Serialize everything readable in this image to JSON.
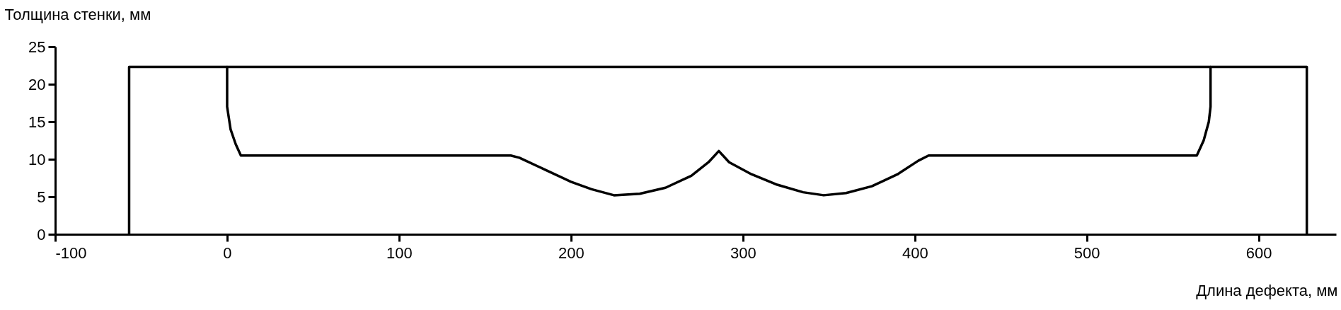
{
  "chart_data": {
    "type": "line",
    "xlabel": "Длина дефекта, мм",
    "ylabel": "Толщина стенки, мм",
    "xlim": [
      -100,
      645
    ],
    "ylim": [
      0,
      25
    ],
    "xticks": [
      -100,
      0,
      100,
      200,
      300,
      400,
      500,
      600
    ],
    "yticks": [
      0,
      5,
      10,
      15,
      20,
      25
    ],
    "grid": false,
    "legend": false,
    "series": [
      {
        "color": "#000000",
        "x": [
          -57,
          -57,
          628,
          628
        ],
        "values": [
          0,
          22.3,
          22.3,
          0
        ]
      },
      {
        "color": "#000000",
        "x": [
          0,
          0,
          2,
          5,
          8,
          165,
          170,
          185,
          200,
          212,
          225,
          240,
          255,
          270,
          280,
          286,
          292,
          305,
          320,
          335,
          347,
          360,
          375,
          390,
          402,
          408,
          564,
          568,
          571,
          572,
          572
        ],
        "values": [
          22.3,
          17,
          14,
          12,
          10.5,
          10.5,
          10.2,
          8.6,
          7.0,
          6.0,
          5.2,
          5.4,
          6.2,
          7.8,
          9.6,
          11.1,
          9.6,
          8.0,
          6.6,
          5.6,
          5.2,
          5.5,
          6.4,
          8.0,
          9.8,
          10.5,
          10.5,
          12.5,
          15,
          17,
          22.3
        ]
      }
    ]
  }
}
